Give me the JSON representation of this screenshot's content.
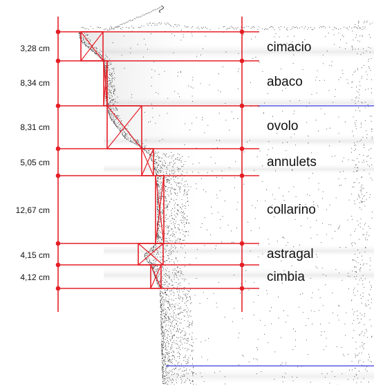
{
  "diagram": {
    "colors": {
      "guide": "#e41e26",
      "blue_line": "#5a5ae6",
      "points": "#111111",
      "text": "#111111",
      "shade": "#d4d4d4"
    },
    "measurements": [
      {
        "value": "3,28 cm",
        "label": "cimacio"
      },
      {
        "value": "8,34 cm",
        "label": "abaco"
      },
      {
        "value": "8,31 cm",
        "label": "ovolo"
      },
      {
        "value": "5,05 cm",
        "label": "annulets"
      },
      {
        "value": "12,67 cm",
        "label": "collarino"
      },
      {
        "value": "4,15 cm",
        "label": "astragal"
      },
      {
        "value": "4,12 cm",
        "label": "cimbia"
      }
    ]
  }
}
